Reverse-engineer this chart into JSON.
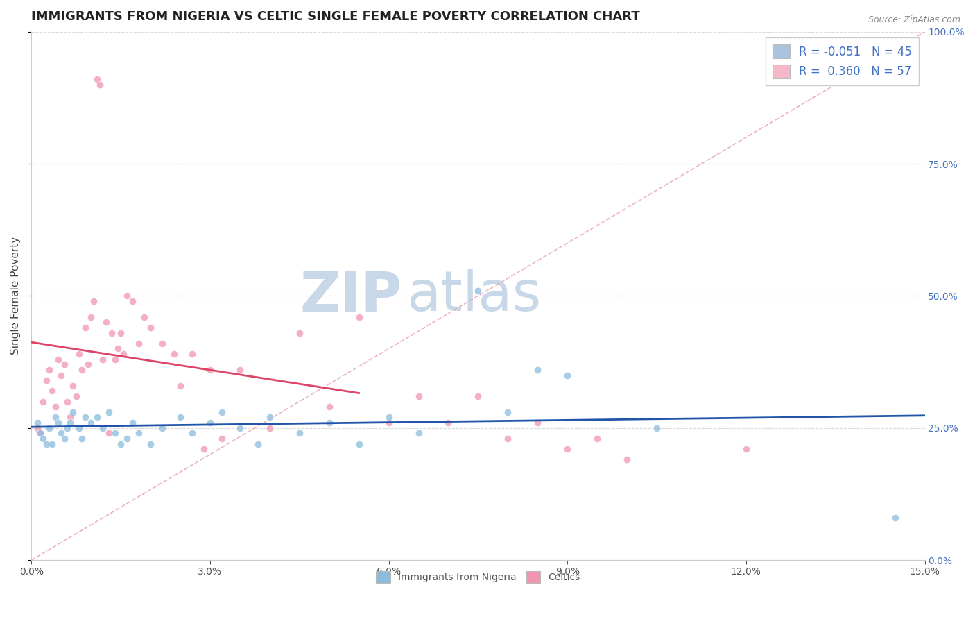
{
  "title": "IMMIGRANTS FROM NIGERIA VS CELTIC SINGLE FEMALE POVERTY CORRELATION CHART",
  "source": "Source: ZipAtlas.com",
  "ylabel": "Single Female Poverty",
  "xlim": [
    0.0,
    15.0
  ],
  "ylim": [
    0.0,
    100.0
  ],
  "xticks": [
    0.0,
    3.0,
    6.0,
    9.0,
    12.0,
    15.0
  ],
  "yticks": [
    0.0,
    25.0,
    50.0,
    75.0,
    100.0
  ],
  "xtick_labels": [
    "0.0%",
    "3.0%",
    "6.0%",
    "9.0%",
    "12.0%",
    "15.0%"
  ],
  "ytick_labels": [
    "0.0%",
    "25.0%",
    "50.0%",
    "75.0%",
    "100.0%"
  ],
  "legend_labels_bottom": [
    "Immigrants from Nigeria",
    "Celtics"
  ],
  "legend_R_N": [
    {
      "label": "R = -0.051",
      "N": "N = 45",
      "color": "#aac4e0"
    },
    {
      "label": "R =  0.360",
      "N": "N = 57",
      "color": "#f4b8c8"
    }
  ],
  "blue_color": "#8bbcdc",
  "pink_color": "#f096b0",
  "blue_line_color": "#2255aa",
  "pink_line_color": "#dd4466",
  "diagonal_color": "#e8a0a8",
  "watermark_zip_color": "#c8d8e8",
  "watermark_atlas_color": "#c8d8e8",
  "title_fontsize": 13,
  "axis_label_fontsize": 11,
  "tick_fontsize": 10,
  "legend_fontsize": 12,
  "nigeria_points": [
    [
      0.1,
      26
    ],
    [
      0.15,
      24
    ],
    [
      0.2,
      23
    ],
    [
      0.25,
      22
    ],
    [
      0.3,
      25
    ],
    [
      0.35,
      22
    ],
    [
      0.4,
      27
    ],
    [
      0.45,
      26
    ],
    [
      0.5,
      24
    ],
    [
      0.55,
      23
    ],
    [
      0.6,
      25
    ],
    [
      0.65,
      26
    ],
    [
      0.7,
      28
    ],
    [
      0.8,
      25
    ],
    [
      0.85,
      23
    ],
    [
      0.9,
      27
    ],
    [
      1.0,
      26
    ],
    [
      1.1,
      27
    ],
    [
      1.2,
      25
    ],
    [
      1.3,
      28
    ],
    [
      1.4,
      24
    ],
    [
      1.5,
      22
    ],
    [
      1.6,
      23
    ],
    [
      1.7,
      26
    ],
    [
      1.8,
      24
    ],
    [
      2.0,
      22
    ],
    [
      2.2,
      25
    ],
    [
      2.5,
      27
    ],
    [
      2.7,
      24
    ],
    [
      3.0,
      26
    ],
    [
      3.2,
      28
    ],
    [
      3.5,
      25
    ],
    [
      3.8,
      22
    ],
    [
      4.0,
      27
    ],
    [
      4.5,
      24
    ],
    [
      5.0,
      26
    ],
    [
      5.5,
      22
    ],
    [
      6.0,
      27
    ],
    [
      6.5,
      24
    ],
    [
      7.5,
      51
    ],
    [
      8.0,
      28
    ],
    [
      8.5,
      36
    ],
    [
      9.0,
      35
    ],
    [
      10.5,
      25
    ],
    [
      14.5,
      8
    ]
  ],
  "celtic_points": [
    [
      0.1,
      25
    ],
    [
      0.15,
      24
    ],
    [
      0.2,
      30
    ],
    [
      0.25,
      34
    ],
    [
      0.3,
      36
    ],
    [
      0.35,
      32
    ],
    [
      0.4,
      29
    ],
    [
      0.45,
      38
    ],
    [
      0.5,
      35
    ],
    [
      0.55,
      37
    ],
    [
      0.6,
      30
    ],
    [
      0.65,
      27
    ],
    [
      0.7,
      33
    ],
    [
      0.75,
      31
    ],
    [
      0.8,
      39
    ],
    [
      0.85,
      36
    ],
    [
      0.9,
      44
    ],
    [
      0.95,
      37
    ],
    [
      1.0,
      46
    ],
    [
      1.05,
      49
    ],
    [
      1.1,
      91
    ],
    [
      1.15,
      90
    ],
    [
      1.2,
      38
    ],
    [
      1.25,
      45
    ],
    [
      1.3,
      24
    ],
    [
      1.35,
      43
    ],
    [
      1.4,
      38
    ],
    [
      1.45,
      40
    ],
    [
      1.5,
      43
    ],
    [
      1.55,
      39
    ],
    [
      1.6,
      50
    ],
    [
      1.7,
      49
    ],
    [
      1.8,
      41
    ],
    [
      1.9,
      46
    ],
    [
      2.0,
      44
    ],
    [
      2.2,
      41
    ],
    [
      2.4,
      39
    ],
    [
      2.5,
      33
    ],
    [
      2.7,
      39
    ],
    [
      2.9,
      21
    ],
    [
      3.0,
      36
    ],
    [
      3.2,
      23
    ],
    [
      3.5,
      36
    ],
    [
      4.0,
      25
    ],
    [
      4.5,
      43
    ],
    [
      5.0,
      29
    ],
    [
      5.5,
      46
    ],
    [
      6.0,
      26
    ],
    [
      6.5,
      31
    ],
    [
      7.0,
      26
    ],
    [
      7.5,
      31
    ],
    [
      8.0,
      23
    ],
    [
      8.5,
      26
    ],
    [
      9.0,
      21
    ],
    [
      9.5,
      23
    ],
    [
      10.0,
      19
    ],
    [
      12.0,
      21
    ]
  ]
}
